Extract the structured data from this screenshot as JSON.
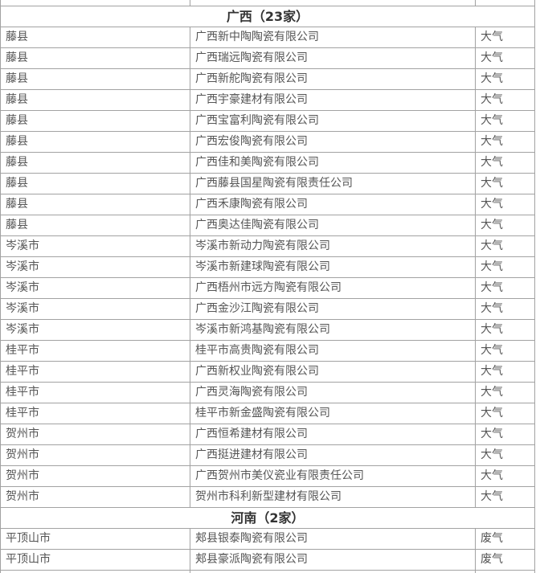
{
  "table": {
    "columns": [
      "city",
      "company",
      "emission_type"
    ],
    "sections": [
      {
        "header": "广西（23家）",
        "rows": [
          {
            "city": "藤县",
            "company": "广西新中陶陶瓷有限公司",
            "type": "大气"
          },
          {
            "city": "藤县",
            "company": "广西瑞远陶瓷有限公司",
            "type": "大气"
          },
          {
            "city": "藤县",
            "company": "广西新舵陶瓷有限公司",
            "type": "大气"
          },
          {
            "city": "藤县",
            "company": "广西宇豪建材有限公司",
            "type": "大气"
          },
          {
            "city": "藤县",
            "company": "广西宝富利陶瓷有限公司",
            "type": "大气"
          },
          {
            "city": "藤县",
            "company": "广西宏俊陶瓷有限公司",
            "type": "大气"
          },
          {
            "city": "藤县",
            "company": "广西佳和美陶瓷有限公司",
            "type": "大气"
          },
          {
            "city": "藤县",
            "company": "广西藤县国星陶瓷有限责任公司",
            "type": "大气"
          },
          {
            "city": "藤县",
            "company": "广西禾康陶瓷有限公司",
            "type": "大气"
          },
          {
            "city": "藤县",
            "company": "广西奥达佳陶瓷有限公司",
            "type": "大气"
          },
          {
            "city": "岑溪市",
            "company": "岑溪市新动力陶瓷有限公司",
            "type": "大气"
          },
          {
            "city": "岑溪市",
            "company": "岑溪市新建球陶瓷有限公司",
            "type": "大气"
          },
          {
            "city": "岑溪市",
            "company": "广西梧州市远方陶瓷有限公司",
            "type": "大气"
          },
          {
            "city": "岑溪市",
            "company": "广西金沙江陶瓷有限公司",
            "type": "大气"
          },
          {
            "city": "岑溪市",
            "company": "岑溪市新鸿基陶瓷有限公司",
            "type": "大气"
          },
          {
            "city": "桂平市",
            "company": "桂平市高贵陶瓷有限公司",
            "type": "大气"
          },
          {
            "city": "桂平市",
            "company": "广西新权业陶瓷有限公司",
            "type": "大气"
          },
          {
            "city": "桂平市",
            "company": "广西灵海陶瓷有限公司",
            "type": "大气"
          },
          {
            "city": "桂平市",
            "company": "桂平市新金盛陶瓷有限公司",
            "type": "大气"
          },
          {
            "city": "贺州市",
            "company": "广西恒希建材有限公司",
            "type": "大气"
          },
          {
            "city": "贺州市",
            "company": "广西挺进建材有限公司",
            "type": "大气"
          },
          {
            "city": "贺州市",
            "company": "广西贺州市美仪瓷业有限责任公司",
            "type": "大气"
          },
          {
            "city": "贺州市",
            "company": "贺州市科利新型建材有限公司",
            "type": "大气"
          }
        ]
      },
      {
        "header": "河南（2家）",
        "rows": [
          {
            "city": "平顶山市",
            "company": "郏县银泰陶瓷有限公司",
            "type": "废气"
          },
          {
            "city": "平顶山市",
            "company": "郏县豪派陶瓷有限公司",
            "type": "废气"
          }
        ]
      }
    ]
  },
  "colors": {
    "border": "#a2a2a2",
    "header_text": "#333333",
    "body_text": "#555555",
    "background": "#ffffff"
  }
}
